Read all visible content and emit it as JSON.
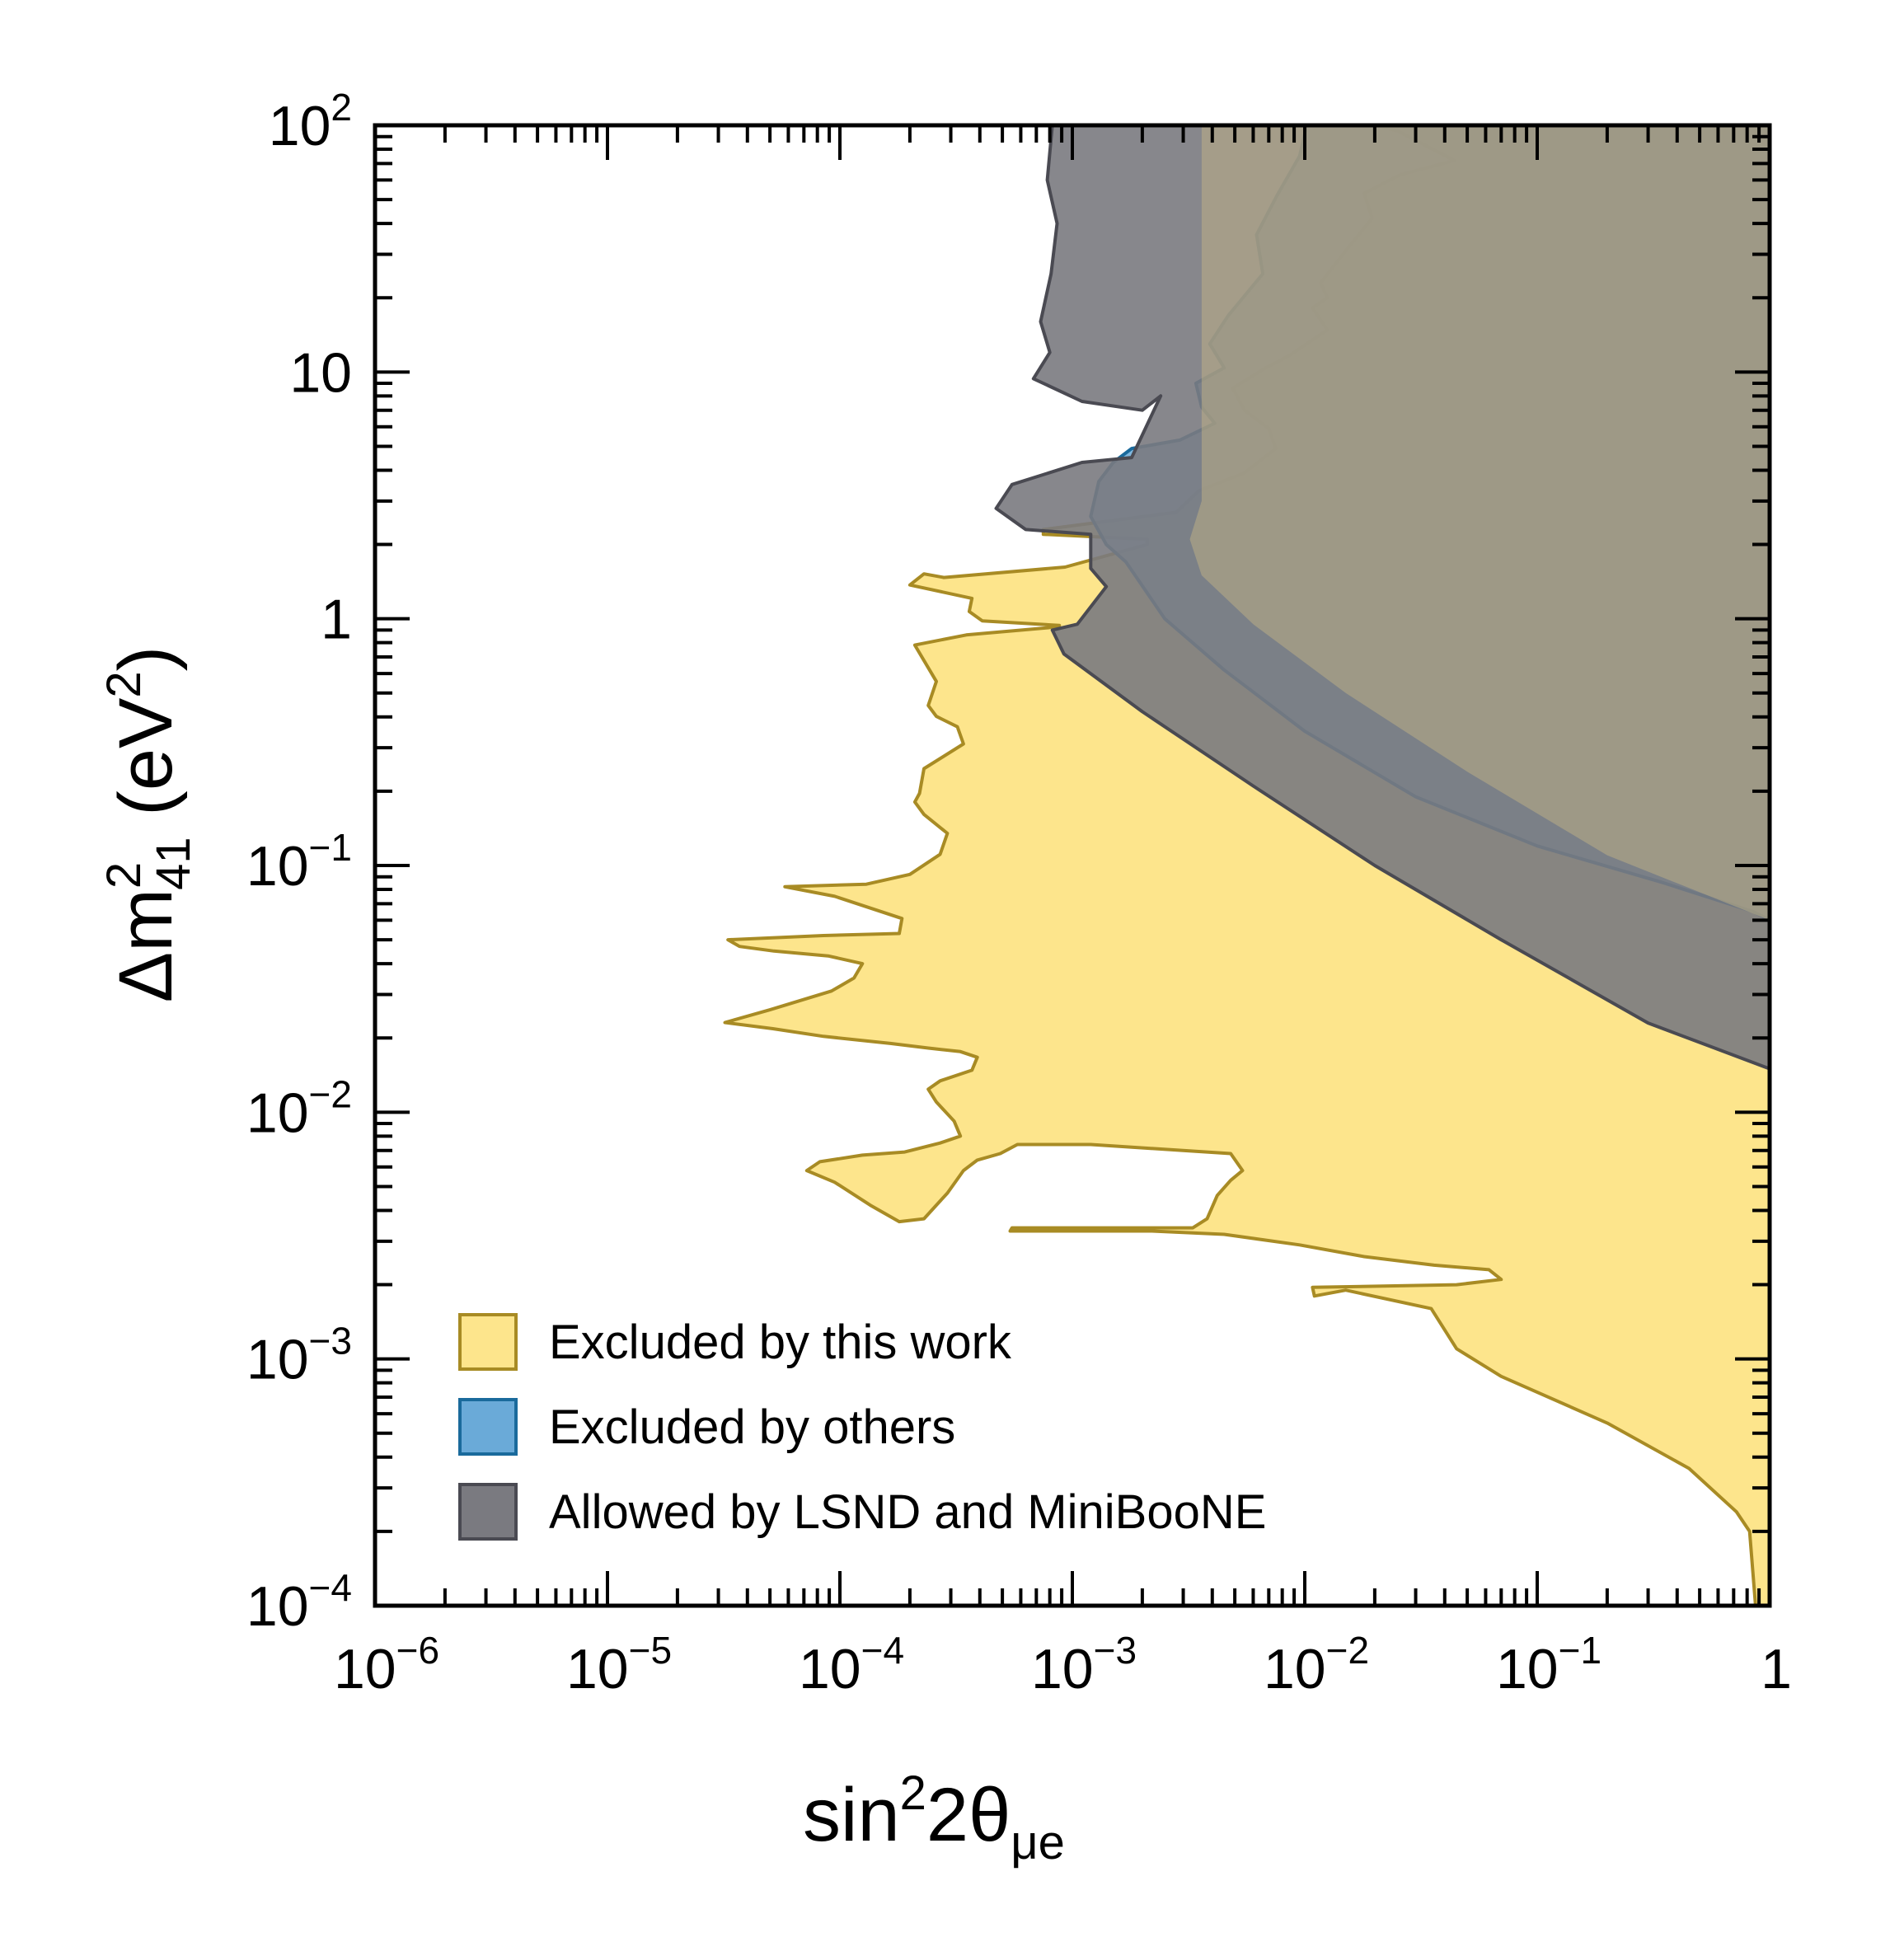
{
  "chart_data": {
    "type": "area",
    "title": "",
    "xlabel": {
      "base": "sin",
      "sup": "2",
      "mid": "2θ",
      "sub": "μe"
    },
    "ylabel": {
      "base": "Δm",
      "sup": "2",
      "sub": "41",
      "tail": " (eV",
      "tail_sup": "2",
      "end": ")"
    },
    "x_scale": "log",
    "y_scale": "log",
    "xlim": [
      1e-06,
      1
    ],
    "ylim": [
      0.0001,
      100
    ],
    "x_ticks": [
      {
        "value": 1e-06,
        "base": "10",
        "exp": "−6"
      },
      {
        "value": 1e-05,
        "base": "10",
        "exp": "−5"
      },
      {
        "value": 0.0001,
        "base": "10",
        "exp": "−4"
      },
      {
        "value": 0.001,
        "base": "10",
        "exp": "−3"
      },
      {
        "value": 0.01,
        "base": "10",
        "exp": "−2"
      },
      {
        "value": 0.1,
        "base": "10",
        "exp": "−1"
      },
      {
        "value": 1,
        "base": "1",
        "exp": ""
      }
    ],
    "y_ticks": [
      {
        "value": 0.0001,
        "base": "10",
        "exp": "−4"
      },
      {
        "value": 0.001,
        "base": "10",
        "exp": "−3"
      },
      {
        "value": 0.01,
        "base": "10",
        "exp": "−2"
      },
      {
        "value": 0.1,
        "base": "10",
        "exp": "−1"
      },
      {
        "value": 1,
        "base": "1",
        "exp": ""
      },
      {
        "value": 10,
        "base": "10",
        "exp": ""
      },
      {
        "value": 100,
        "base": "10",
        "exp": "2"
      }
    ],
    "grid": false,
    "legend_position": "bottom-left",
    "series": [
      {
        "name": "Excluded by this work",
        "fill": "#fde58c",
        "stroke": "#a88b24",
        "opacity": 1,
        "boundary": [
          [
            0.87,
            0.0001
          ],
          [
            0.82,
            0.0002
          ],
          [
            0.72,
            0.00024
          ],
          [
            0.45,
            0.00036
          ],
          [
            0.2,
            0.00055
          ],
          [
            0.07,
            0.00085
          ],
          [
            0.045,
            0.0011
          ],
          [
            0.035,
            0.0016
          ],
          [
            0.015,
            0.0019
          ],
          [
            0.011,
            0.0018
          ],
          [
            0.0108,
            0.00195
          ],
          [
            0.045,
            0.002
          ],
          [
            0.07,
            0.0021
          ],
          [
            0.062,
            0.0023
          ],
          [
            0.036,
            0.0024
          ],
          [
            0.018,
            0.0026
          ],
          [
            0.0095,
            0.0029
          ],
          [
            0.0045,
            0.0032
          ],
          [
            0.0022,
            0.0033
          ],
          [
            0.0007,
            0.0033
          ],
          [
            0.00054,
            0.0033
          ],
          [
            0.00055,
            0.0034
          ],
          [
            0.0013,
            0.0034
          ],
          [
            0.0033,
            0.0034
          ],
          [
            0.0038,
            0.0037
          ],
          [
            0.0042,
            0.0046
          ],
          [
            0.0048,
            0.0053
          ],
          [
            0.0054,
            0.0058
          ],
          [
            0.0048,
            0.0068
          ],
          [
            0.0012,
            0.0074
          ],
          [
            0.00058,
            0.0074
          ],
          [
            0.00049,
            0.0068
          ],
          [
            0.00039,
            0.0064
          ],
          [
            0.00034,
            0.0058
          ],
          [
            0.00029,
            0.0047
          ],
          [
            0.00026,
            0.0042
          ],
          [
            0.00023,
            0.0037
          ],
          [
            0.00018,
            0.0036
          ],
          [
            0.000135,
            0.0042
          ],
          [
            9.5e-05,
            0.0052
          ],
          [
            7.2e-05,
            0.0058
          ],
          [
            8.2e-05,
            0.0063
          ],
          [
            0.000125,
            0.0067
          ],
          [
            0.00019,
            0.0069
          ],
          [
            0.00027,
            0.0075
          ],
          [
            0.00033,
            0.008
          ],
          [
            0.00031,
            0.0092
          ],
          [
            0.00026,
            0.011
          ],
          [
            0.00024,
            0.0124
          ],
          [
            0.00027,
            0.0134
          ],
          [
            0.00037,
            0.0148
          ],
          [
            0.00039,
            0.0167
          ],
          [
            0.00033,
            0.0176
          ],
          [
            0.00024,
            0.0182
          ],
          [
            0.000165,
            0.019
          ],
          [
            8.5e-05,
            0.0203
          ],
          [
            5.15e-05,
            0.0218
          ],
          [
            3.2e-05,
            0.0231
          ],
          [
            5e-05,
            0.026
          ],
          [
            9.2e-05,
            0.031
          ],
          [
            0.000115,
            0.035
          ],
          [
            0.000125,
            0.04
          ],
          [
            8.9e-05,
            0.043
          ],
          [
            5.2e-05,
            0.045
          ],
          [
            3.7e-05,
            0.047
          ],
          [
            3.3e-05,
            0.05
          ],
          [
            8.5e-05,
            0.052
          ],
          [
            0.00018,
            0.053
          ],
          [
            0.000185,
            0.061
          ],
          [
            9.5e-05,
            0.075
          ],
          [
            5.8e-05,
            0.082
          ],
          [
            0.00013,
            0.084
          ],
          [
            0.0002,
            0.092
          ],
          [
            0.00027,
            0.111
          ],
          [
            0.00029,
            0.135
          ],
          [
            0.00023,
            0.161
          ],
          [
            0.00021,
            0.181
          ],
          [
            0.00022,
            0.196
          ],
          [
            0.00023,
            0.247
          ],
          [
            0.00034,
            0.311
          ],
          [
            0.00032,
            0.365
          ],
          [
            0.00026,
            0.402
          ],
          [
            0.00024,
            0.445
          ],
          [
            0.00026,
            0.557
          ],
          [
            0.00021,
            0.782
          ],
          [
            0.00035,
            0.86
          ],
          [
            0.00079,
            0.92
          ],
          [
            0.00088,
            0.94
          ],
          [
            0.00041,
            0.98
          ],
          [
            0.00036,
            1.07
          ],
          [
            0.00037,
            1.21
          ],
          [
            0.0002,
            1.37
          ],
          [
            0.00023,
            1.52
          ],
          [
            0.00028,
            1.47
          ],
          [
            0.00093,
            1.62
          ],
          [
            0.0021,
            2.0
          ],
          [
            0.0021,
            2.1
          ],
          [
            0.00075,
            2.2
          ],
          [
            0.00075,
            2.3
          ],
          [
            0.0028,
            2.7
          ],
          [
            0.0035,
            3.3
          ],
          [
            0.0055,
            3.9
          ],
          [
            0.0075,
            4.9
          ],
          [
            0.007,
            5.9
          ],
          [
            0.0055,
            7.0
          ],
          [
            0.0049,
            8.6
          ],
          [
            0.0068,
            10.4
          ],
          [
            0.0085,
            11.6
          ],
          [
            0.0125,
            14.8
          ],
          [
            0.0108,
            18.2
          ],
          [
            0.0125,
            20.0
          ],
          [
            0.0117,
            23.0
          ],
          [
            0.0154,
            32.0
          ],
          [
            0.0195,
            42.0
          ],
          [
            0.018,
            53.0
          ],
          [
            0.0257,
            63.0
          ],
          [
            0.044,
            72.0
          ],
          [
            0.025,
            95.0
          ],
          [
            0.02,
            100
          ],
          [
            1,
            100
          ],
          [
            1,
            0.0001
          ]
        ]
      },
      {
        "name": "Excluded by others",
        "fill": "#6aaad8",
        "stroke": "#1a6a9c",
        "opacity": 0.85,
        "boundary": [
          [
            0.0102,
            100
          ],
          [
            0.0095,
            75
          ],
          [
            0.0076,
            52
          ],
          [
            0.0062,
            36
          ],
          [
            0.0066,
            25
          ],
          [
            0.0047,
            17
          ],
          [
            0.0039,
            13
          ],
          [
            0.0045,
            10.4
          ],
          [
            0.0034,
            9.0
          ],
          [
            0.0036,
            7.2
          ],
          [
            0.0041,
            6.2
          ],
          [
            0.0029,
            5.3
          ],
          [
            0.0018,
            4.9
          ],
          [
            0.0015,
            4.3
          ],
          [
            0.0013,
            3.6
          ],
          [
            0.0012,
            2.6
          ],
          [
            0.0014,
            2.0
          ],
          [
            0.0017,
            1.7
          ],
          [
            0.0025,
            1.0
          ],
          [
            0.0045,
            0.62
          ],
          [
            0.01,
            0.35
          ],
          [
            0.03,
            0.19
          ],
          [
            0.1,
            0.12
          ],
          [
            0.35,
            0.085
          ],
          [
            0.85,
            0.065
          ],
          [
            1,
            0.06
          ],
          [
            1,
            100
          ]
        ]
      },
      {
        "name": "Allowed by LSND and MiniBooNE",
        "fill": "#7a7a80",
        "stroke": "#4a4a52",
        "opacity": 0.9,
        "boundary": [
          [
            0.00082,
            100
          ],
          [
            0.00078,
            60
          ],
          [
            0.00086,
            40
          ],
          [
            0.00081,
            25
          ],
          [
            0.00073,
            16
          ],
          [
            0.0008,
            12
          ],
          [
            0.00068,
            9.4
          ],
          [
            0.0011,
            7.6
          ],
          [
            0.002,
            7.0
          ],
          [
            0.0024,
            8.0
          ],
          [
            0.0018,
            4.5
          ],
          [
            0.0011,
            4.3
          ],
          [
            0.00055,
            3.5
          ],
          [
            0.00047,
            2.8
          ],
          [
            0.00063,
            2.3
          ],
          [
            0.0012,
            2.2
          ],
          [
            0.0012,
            1.6
          ],
          [
            0.0014,
            1.35
          ],
          [
            0.00105,
            0.95
          ],
          [
            0.00082,
            0.9
          ],
          [
            0.00092,
            0.72
          ],
          [
            0.002,
            0.42
          ],
          [
            0.006,
            0.21
          ],
          [
            0.02,
            0.1
          ],
          [
            0.07,
            0.05
          ],
          [
            0.3,
            0.023
          ],
          [
            1,
            0.015
          ],
          [
            1,
            100
          ]
        ]
      },
      {
        "name": "",
        "fill": "#c9b985",
        "stroke": "none",
        "opacity": 0.45,
        "boundary": [
          [
            0.0036,
            100
          ],
          [
            0.0036,
            3.0
          ],
          [
            0.0032,
            2.1
          ],
          [
            0.0036,
            1.5
          ],
          [
            0.006,
            0.95
          ],
          [
            0.015,
            0.5
          ],
          [
            0.05,
            0.24
          ],
          [
            0.2,
            0.11
          ],
          [
            1,
            0.06
          ],
          [
            1,
            100
          ]
        ]
      }
    ],
    "legend": [
      {
        "label": "Excluded by this work",
        "fill": "#fde58c",
        "stroke": "#a88b24"
      },
      {
        "label": "Excluded by others",
        "fill": "#6aaad8",
        "stroke": "#1a6a9c"
      },
      {
        "label": "Allowed by LSND and MiniBooNE",
        "fill": "#7a7a80",
        "stroke": "#4a4a52"
      }
    ]
  }
}
